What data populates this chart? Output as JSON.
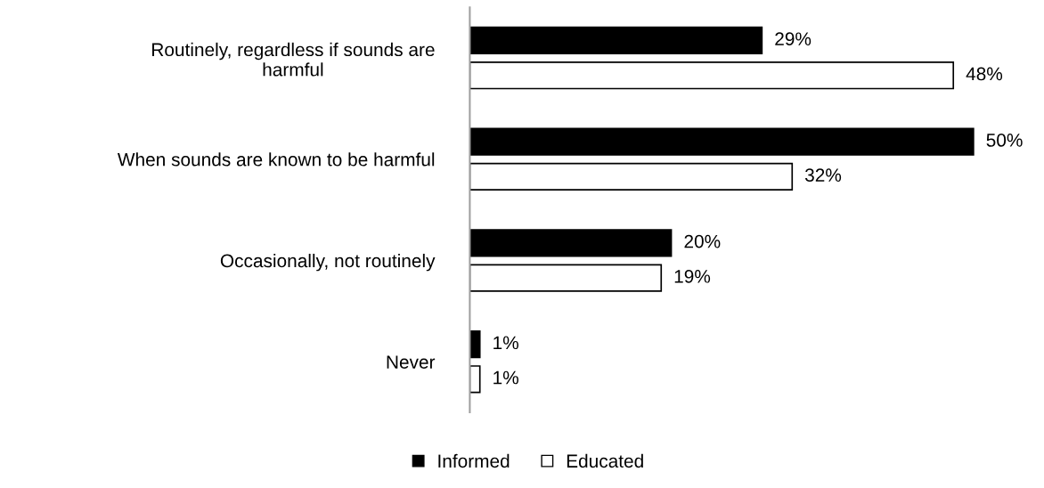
{
  "chart_data": {
    "type": "bar",
    "orientation": "horizontal",
    "categories": [
      "Routinely, regardless if sounds are\nharmful",
      "When sounds are known to be harmful",
      "Occasionally, not routinely",
      "Never"
    ],
    "series": [
      {
        "name": "Informed",
        "color": "#000000",
        "values": [
          29,
          50,
          20,
          1
        ],
        "value_labels": [
          "29%",
          "50%",
          "20%",
          "1%"
        ]
      },
      {
        "name": "Educated",
        "color": "#ffffff",
        "values": [
          48,
          32,
          19,
          1
        ],
        "value_labels": [
          "48%",
          "32%",
          "19%",
          "1%"
        ]
      }
    ],
    "legend": "bottom",
    "grid": false,
    "tick_labels": "y"
  }
}
